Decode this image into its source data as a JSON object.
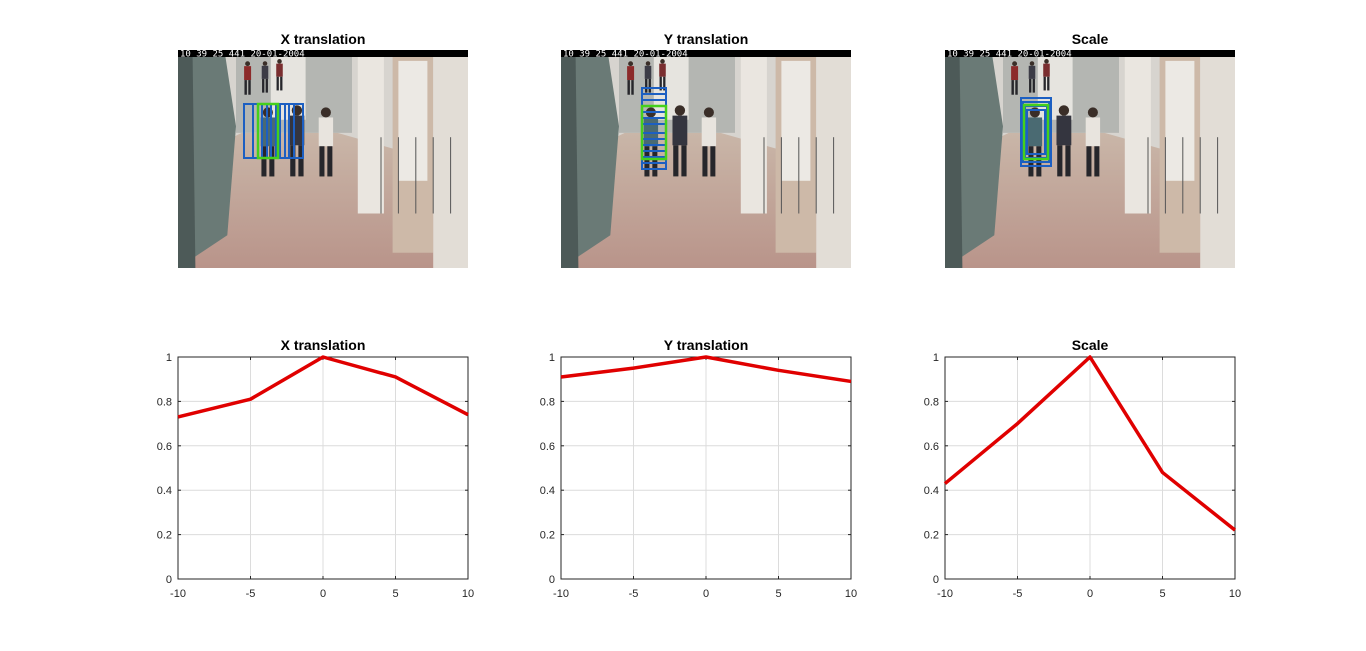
{
  "images": [
    {
      "title": "X translation",
      "timestamp": "10 39 25 441  20-01-2004",
      "boxes": "x"
    },
    {
      "title": "Y translation",
      "timestamp": "10 39 25 441  20-01-2004",
      "boxes": "y"
    },
    {
      "title": "Scale",
      "timestamp": "10 39 25 441  20-01-2004",
      "boxes": "scale"
    }
  ],
  "colors": {
    "line": "#e00000",
    "box_blue": "#1c5fc2",
    "box_green": "#44d01c"
  },
  "chart_data": [
    {
      "type": "line",
      "title": "X translation",
      "xlabel": "",
      "ylabel": "",
      "xlim": [
        -10,
        10
      ],
      "ylim": [
        0,
        1
      ],
      "xticks": [
        "-10",
        "-5",
        "0",
        "5",
        "10"
      ],
      "yticks": [
        "0",
        "0.2",
        "0.4",
        "0.6",
        "0.8",
        "1"
      ],
      "grid": true,
      "series": [
        {
          "x": [
            -10,
            -5,
            0,
            5,
            10
          ],
          "y": [
            0.73,
            0.81,
            1.0,
            0.91,
            0.74
          ],
          "color": "#e00000"
        }
      ]
    },
    {
      "type": "line",
      "title": "Y translation",
      "xlabel": "",
      "ylabel": "",
      "xlim": [
        -10,
        10
      ],
      "ylim": [
        0,
        1
      ],
      "xticks": [
        "-10",
        "-5",
        "0",
        "5",
        "10"
      ],
      "yticks": [
        "0",
        "0.2",
        "0.4",
        "0.6",
        "0.8",
        "1"
      ],
      "grid": true,
      "series": [
        {
          "x": [
            -10,
            -5,
            0,
            5,
            10
          ],
          "y": [
            0.91,
            0.95,
            1.0,
            0.94,
            0.89
          ],
          "color": "#e00000"
        }
      ]
    },
    {
      "type": "line",
      "title": "Scale",
      "xlabel": "",
      "ylabel": "",
      "xlim": [
        -10,
        10
      ],
      "ylim": [
        0,
        1
      ],
      "xticks": [
        "-10",
        "-5",
        "0",
        "5",
        "10"
      ],
      "yticks": [
        "0",
        "0.2",
        "0.4",
        "0.6",
        "0.8",
        "1"
      ],
      "grid": true,
      "series": [
        {
          "x": [
            -10,
            -5,
            0,
            5,
            10
          ],
          "y": [
            0.43,
            0.7,
            1.0,
            0.48,
            0.22
          ],
          "color": "#e00000"
        }
      ]
    }
  ]
}
